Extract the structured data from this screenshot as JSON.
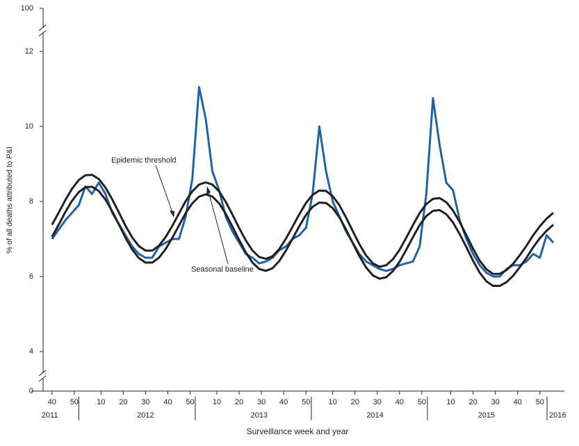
{
  "chart_data": {
    "type": "line",
    "xlabel": "Surveillance week and year",
    "ylabel": "% of all deaths attributed to P&I",
    "x": [
      0,
      3,
      6,
      9,
      12,
      15,
      18,
      21,
      24,
      27,
      30,
      33,
      36,
      39,
      42,
      45,
      48,
      51,
      54,
      57,
      60,
      63,
      66,
      69,
      72,
      75,
      78,
      81,
      84,
      87,
      90,
      93,
      96,
      99,
      102,
      105,
      108,
      111,
      114,
      117,
      120,
      123,
      126,
      129,
      132,
      135,
      138,
      141,
      144,
      147,
      150,
      153,
      156,
      159,
      162,
      165,
      168,
      171,
      174,
      177,
      180,
      183,
      186,
      189,
      192,
      195,
      198,
      201,
      204,
      207,
      210,
      213,
      216,
      219,
      222,
      225
    ],
    "series": [
      {
        "color": "#1f62a8",
        "values": [
          7.0,
          7.25,
          7.5,
          7.7,
          7.9,
          8.4,
          8.2,
          8.5,
          8.2,
          7.7,
          7.4,
          7.1,
          6.8,
          6.6,
          6.5,
          6.5,
          6.8,
          6.9,
          7.0,
          7.0,
          7.6,
          8.6,
          11.05,
          10.2,
          8.8,
          8.3,
          7.6,
          7.2,
          6.9,
          6.6,
          6.5,
          6.35,
          6.4,
          6.5,
          6.7,
          6.8,
          7.0,
          7.1,
          7.3,
          8.2,
          10.0,
          8.8,
          8.0,
          7.6,
          7.2,
          6.9,
          6.6,
          6.4,
          6.3,
          6.2,
          6.15,
          6.2,
          6.3,
          6.35,
          6.4,
          6.8,
          8.2,
          10.75,
          9.5,
          8.5,
          8.3,
          7.5,
          7.0,
          6.6,
          6.3,
          6.1,
          6.0,
          6.0,
          6.2,
          6.3,
          6.3,
          6.4,
          6.6,
          6.5,
          7.1,
          6.9
        ]
      },
      {
        "name": "Epidemic threshold",
        "color": "#231f20",
        "values": [
          7.38,
          7.7,
          8.04,
          8.34,
          8.57,
          8.7,
          8.71,
          8.6,
          8.37,
          8.06,
          7.71,
          7.35,
          7.04,
          6.81,
          6.69,
          6.69,
          6.82,
          7.05,
          7.35,
          7.68,
          8.01,
          8.27,
          8.45,
          8.51,
          8.45,
          8.27,
          7.99,
          7.65,
          7.29,
          6.96,
          6.69,
          6.52,
          6.47,
          6.54,
          6.73,
          7.01,
          7.33,
          7.66,
          7.96,
          8.18,
          8.29,
          8.28,
          8.14,
          7.9,
          7.57,
          7.21,
          6.86,
          6.56,
          6.35,
          6.26,
          6.3,
          6.46,
          6.71,
          7.03,
          7.37,
          7.69,
          7.93,
          8.07,
          8.09,
          7.98,
          7.76,
          7.45,
          7.1,
          6.74,
          6.42,
          6.19,
          6.07,
          6.07,
          6.17,
          6.34,
          6.57,
          6.82,
          7.1,
          7.34,
          7.54,
          7.7
        ]
      },
      {
        "name": "Seasonal baseline",
        "color": "#231f20",
        "values": [
          7.06,
          7.38,
          7.72,
          8.02,
          8.25,
          8.38,
          8.39,
          8.28,
          8.05,
          7.74,
          7.39,
          7.03,
          6.72,
          6.49,
          6.37,
          6.37,
          6.5,
          6.73,
          7.03,
          7.36,
          7.69,
          7.95,
          8.13,
          8.19,
          8.13,
          7.95,
          7.67,
          7.33,
          6.97,
          6.64,
          6.37,
          6.2,
          6.15,
          6.22,
          6.41,
          6.69,
          7.01,
          7.34,
          7.64,
          7.86,
          7.97,
          7.96,
          7.82,
          7.58,
          7.25,
          6.89,
          6.54,
          6.24,
          6.03,
          5.94,
          5.98,
          6.14,
          6.39,
          6.71,
          7.05,
          7.37,
          7.61,
          7.75,
          7.77,
          7.66,
          7.44,
          7.13,
          6.78,
          6.42,
          6.1,
          5.87,
          5.75,
          5.75,
          5.85,
          6.02,
          6.25,
          6.5,
          6.78,
          7.02,
          7.22,
          7.38
        ]
      }
    ],
    "xlim": [
      -4,
      230
    ],
    "ylim": [
      3.5,
      12.5
    ],
    "yticks": [
      4,
      6,
      8,
      10,
      12
    ],
    "axis_break_ticks": [
      0,
      100
    ],
    "xticks": [
      {
        "value": 0,
        "label": "40"
      },
      {
        "value": 10,
        "label": "50"
      },
      {
        "value": 22,
        "label": "10"
      },
      {
        "value": 32,
        "label": "20"
      },
      {
        "value": 42,
        "label": "30"
      },
      {
        "value": 52,
        "label": "40"
      },
      {
        "value": 62,
        "label": "50"
      },
      {
        "value": 74,
        "label": "10"
      },
      {
        "value": 84,
        "label": "20"
      },
      {
        "value": 94,
        "label": "30"
      },
      {
        "value": 104,
        "label": "40"
      },
      {
        "value": 114,
        "label": "50"
      },
      {
        "value": 126,
        "label": "10"
      },
      {
        "value": 136,
        "label": "20"
      },
      {
        "value": 146,
        "label": "30"
      },
      {
        "value": 156,
        "label": "40"
      },
      {
        "value": 166,
        "label": "50"
      },
      {
        "value": 179,
        "label": "10"
      },
      {
        "value": 189,
        "label": "20"
      },
      {
        "value": 199,
        "label": "30"
      },
      {
        "value": 209,
        "label": "40"
      },
      {
        "value": 219,
        "label": "50"
      }
    ],
    "year_ticks": [
      {
        "value": -1,
        "label": "2011"
      },
      {
        "value": 42,
        "label": "2012"
      },
      {
        "value": 93,
        "label": "2013"
      },
      {
        "value": 145,
        "label": "2014"
      },
      {
        "value": 195,
        "label": "2015"
      },
      {
        "value": 227,
        "label": "2016"
      }
    ],
    "year_dividers": [
      12,
      64.3,
      116.4,
      168.5,
      222.2
    ],
    "grid": false
  }
}
